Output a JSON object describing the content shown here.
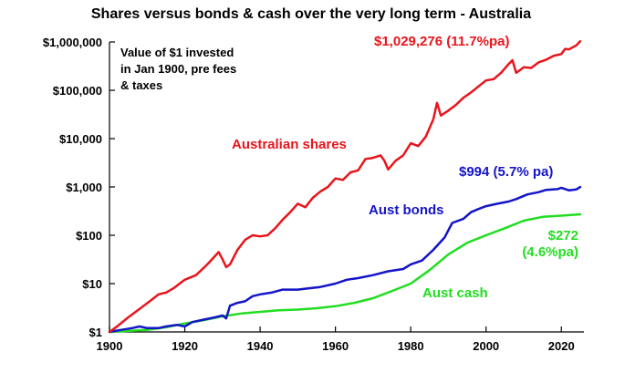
{
  "chart_data": {
    "type": "line",
    "title": "Shares versus bonds & cash over the very long term - Australia",
    "note_lines": [
      "Value of $1 invested",
      "in Jan 1900, pre fees",
      "& taxes"
    ],
    "xlim": [
      1900,
      2026
    ],
    "ylim": [
      1,
      1000000
    ],
    "y_scale": "log",
    "grid": false,
    "x_ticks": [
      1900,
      1920,
      1940,
      1960,
      1980,
      2000,
      2020
    ],
    "x_tick_labels": [
      "1900",
      "1920",
      "1940",
      "1960",
      "1980",
      "2000",
      "2020"
    ],
    "y_ticks": [
      1,
      10,
      100,
      1000,
      10000,
      100000,
      1000000
    ],
    "y_tick_labels": [
      "$1",
      "$10",
      "$100",
      "$1,000",
      "$10,000",
      "$100,000",
      "$1,000,000"
    ],
    "series": [
      {
        "name": "Australian shares",
        "color": "#e8151b",
        "end_label": "$1,029,276 (11.7%pa)",
        "points": [
          [
            1900,
            1
          ],
          [
            1902,
            1.3
          ],
          [
            1905,
            2
          ],
          [
            1908,
            3
          ],
          [
            1911,
            4.5
          ],
          [
            1913,
            6
          ],
          [
            1915,
            6.5
          ],
          [
            1917,
            8
          ],
          [
            1920,
            12
          ],
          [
            1923,
            15
          ],
          [
            1926,
            25
          ],
          [
            1929,
            45
          ],
          [
            1930,
            32
          ],
          [
            1931,
            22
          ],
          [
            1932,
            25
          ],
          [
            1934,
            50
          ],
          [
            1936,
            80
          ],
          [
            1938,
            100
          ],
          [
            1940,
            95
          ],
          [
            1942,
            100
          ],
          [
            1944,
            140
          ],
          [
            1946,
            210
          ],
          [
            1948,
            300
          ],
          [
            1950,
            450
          ],
          [
            1952,
            380
          ],
          [
            1954,
            600
          ],
          [
            1956,
            800
          ],
          [
            1958,
            1000
          ],
          [
            1960,
            1500
          ],
          [
            1962,
            1400
          ],
          [
            1964,
            2000
          ],
          [
            1966,
            2200
          ],
          [
            1968,
            3800
          ],
          [
            1970,
            4000
          ],
          [
            1972,
            4500
          ],
          [
            1973,
            3500
          ],
          [
            1974,
            2300
          ],
          [
            1976,
            3500
          ],
          [
            1978,
            4500
          ],
          [
            1980,
            8000
          ],
          [
            1982,
            7000
          ],
          [
            1984,
            11000
          ],
          [
            1986,
            25000
          ],
          [
            1987,
            55000
          ],
          [
            1988,
            30000
          ],
          [
            1990,
            38000
          ],
          [
            1992,
            50000
          ],
          [
            1994,
            70000
          ],
          [
            1996,
            90000
          ],
          [
            1998,
            120000
          ],
          [
            2000,
            160000
          ],
          [
            2002,
            170000
          ],
          [
            2004,
            230000
          ],
          [
            2006,
            350000
          ],
          [
            2007,
            420000
          ],
          [
            2008,
            230000
          ],
          [
            2009,
            260000
          ],
          [
            2010,
            300000
          ],
          [
            2012,
            290000
          ],
          [
            2014,
            380000
          ],
          [
            2016,
            430000
          ],
          [
            2018,
            520000
          ],
          [
            2020,
            560000
          ],
          [
            2021,
            720000
          ],
          [
            2022,
            700000
          ],
          [
            2024,
            850000
          ],
          [
            2025,
            1029276
          ]
        ]
      },
      {
        "name": "Aust bonds",
        "color": "#1414c8",
        "end_label": "$994 (5.7% pa)",
        "points": [
          [
            1900,
            1
          ],
          [
            1903,
            1.1
          ],
          [
            1906,
            1.2
          ],
          [
            1908,
            1.3
          ],
          [
            1910,
            1.2
          ],
          [
            1913,
            1.2
          ],
          [
            1915,
            1.3
          ],
          [
            1918,
            1.4
          ],
          [
            1920,
            1.3
          ],
          [
            1922,
            1.6
          ],
          [
            1925,
            1.8
          ],
          [
            1928,
            2
          ],
          [
            1930,
            2.2
          ],
          [
            1931,
            1.9
          ],
          [
            1932,
            3.5
          ],
          [
            1934,
            4
          ],
          [
            1936,
            4.3
          ],
          [
            1938,
            5.5
          ],
          [
            1940,
            6
          ],
          [
            1943,
            6.5
          ],
          [
            1946,
            7.5
          ],
          [
            1950,
            7.5
          ],
          [
            1953,
            8
          ],
          [
            1956,
            8.5
          ],
          [
            1960,
            10
          ],
          [
            1963,
            12
          ],
          [
            1966,
            13
          ],
          [
            1970,
            15
          ],
          [
            1974,
            18
          ],
          [
            1978,
            20
          ],
          [
            1980,
            25
          ],
          [
            1983,
            30
          ],
          [
            1986,
            50
          ],
          [
            1989,
            90
          ],
          [
            1991,
            180
          ],
          [
            1994,
            220
          ],
          [
            1996,
            300
          ],
          [
            1998,
            350
          ],
          [
            2000,
            400
          ],
          [
            2003,
            450
          ],
          [
            2006,
            500
          ],
          [
            2008,
            560
          ],
          [
            2011,
            700
          ],
          [
            2014,
            780
          ],
          [
            2016,
            870
          ],
          [
            2019,
            900
          ],
          [
            2020,
            960
          ],
          [
            2022,
            850
          ],
          [
            2024,
            890
          ],
          [
            2025,
            994
          ]
        ]
      },
      {
        "name": "Aust cash",
        "color": "#22dd22",
        "end_label_lines": [
          "$272",
          "(4.6%pa)"
        ],
        "points": [
          [
            1900,
            1
          ],
          [
            1905,
            1.05
          ],
          [
            1910,
            1.1
          ],
          [
            1915,
            1.25
          ],
          [
            1920,
            1.5
          ],
          [
            1925,
            1.75
          ],
          [
            1930,
            2.1
          ],
          [
            1935,
            2.4
          ],
          [
            1940,
            2.6
          ],
          [
            1945,
            2.8
          ],
          [
            1950,
            2.9
          ],
          [
            1955,
            3.1
          ],
          [
            1960,
            3.4
          ],
          [
            1965,
            4
          ],
          [
            1970,
            5
          ],
          [
            1975,
            7
          ],
          [
            1980,
            10
          ],
          [
            1985,
            19
          ],
          [
            1990,
            40
          ],
          [
            1995,
            70
          ],
          [
            2000,
            100
          ],
          [
            2005,
            140
          ],
          [
            2010,
            200
          ],
          [
            2015,
            240
          ],
          [
            2020,
            255
          ],
          [
            2025,
            272
          ]
        ]
      }
    ]
  }
}
